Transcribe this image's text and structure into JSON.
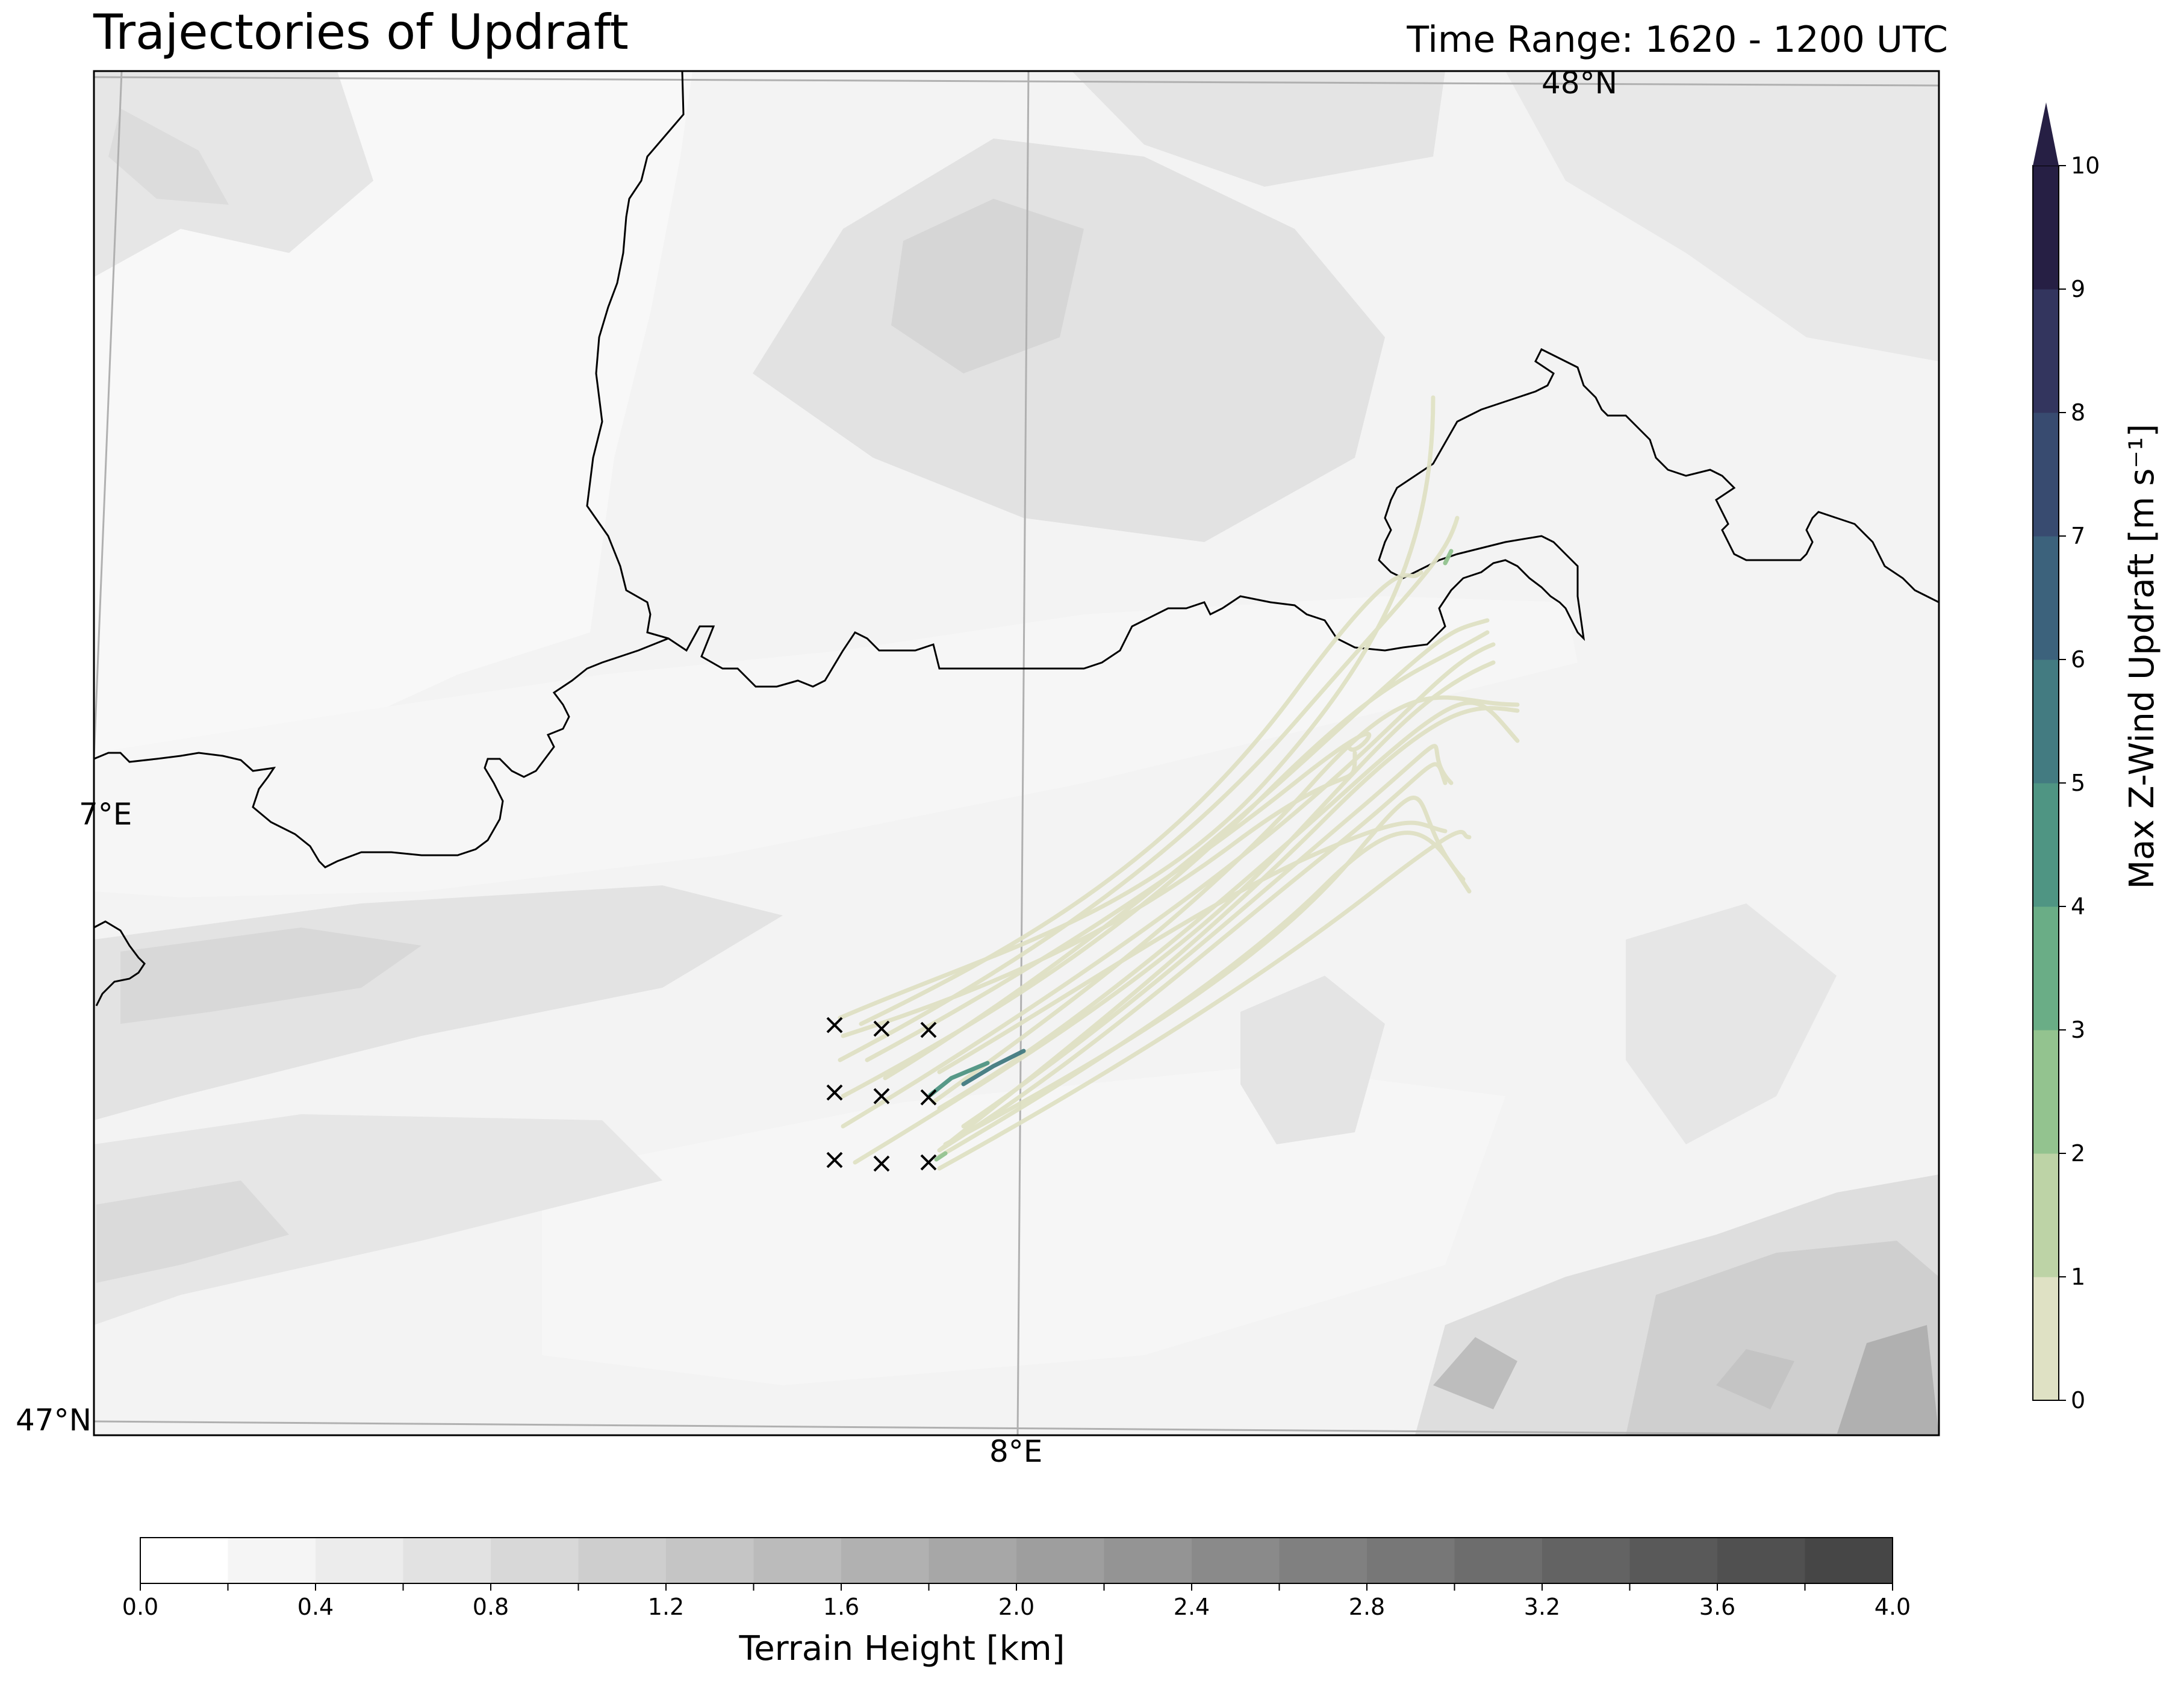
{
  "title": "Trajectories of Updraft",
  "subtitle": "Time Range: 1620 - 1200 UTC",
  "map": {
    "lat_labels": [
      "48°N",
      "47°N"
    ],
    "lon_labels": [
      "7°E",
      "8°E"
    ],
    "borders": "black",
    "graticule": "gray"
  },
  "colorbars": {
    "updraft": {
      "label": "Max Z-Wind Updraft [m s⁻¹]",
      "ticks": [
        "0",
        "1",
        "2",
        "3",
        "4",
        "5",
        "6",
        "7",
        "8",
        "9",
        "10"
      ],
      "extend": "max",
      "colors": [
        "#dfe1c4",
        "#bdd3a6",
        "#93c38f",
        "#6aad86",
        "#4f9583",
        "#437b81",
        "#3c627c",
        "#384b70",
        "#33355e",
        "#261f44"
      ]
    },
    "terrain": {
      "label": "Terrain Height [km]",
      "ticks": [
        "0.0",
        "0.4",
        "0.8",
        "1.2",
        "1.6",
        "2.0",
        "2.4",
        "2.8",
        "3.2",
        "3.6",
        "4.0"
      ],
      "range": [
        0.0,
        4.0
      ],
      "step": 0.2
    }
  },
  "chart_data": {
    "type": "trajectory-map",
    "title": "Trajectories of Updraft",
    "time_range": "1620 - 1200 UTC",
    "start_markers": [
      {
        "row": 1,
        "col": 1
      },
      {
        "row": 1,
        "col": 2
      },
      {
        "row": 1,
        "col": 3
      },
      {
        "row": 2,
        "col": 1
      },
      {
        "row": 2,
        "col": 2
      },
      {
        "row": 2,
        "col": 3
      },
      {
        "row": 3,
        "col": 1
      },
      {
        "row": 3,
        "col": 2
      },
      {
        "row": 3,
        "col": 3
      }
    ],
    "trajectory_count": 18,
    "dominant_updraft_class": "0-1 m/s",
    "max_updraft_segment": "6-7 m/s"
  }
}
